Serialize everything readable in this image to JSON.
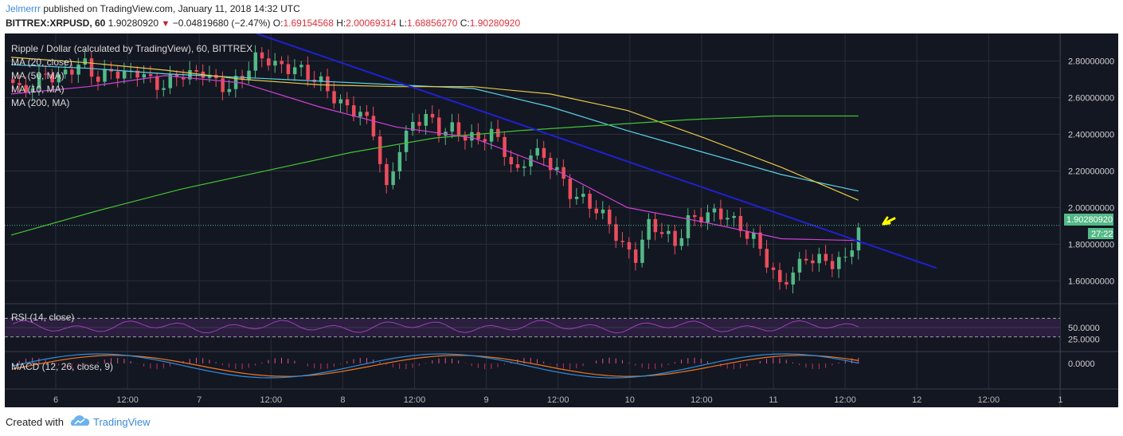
{
  "header": {
    "author": "Jelmerrr",
    "published": "published on TradingView.com, January 11, 2018 14:32 UTC",
    "symbol": "BITTREX:XRPUSD, 60",
    "price": "1.90280920",
    "change": "−0.04819680 (−2.47%)",
    "open_label": "O:",
    "open": "1.69154568",
    "high_label": "H:",
    "high": "2.00069314",
    "low_label": "L:",
    "low": "1.68856270",
    "close_label": "C:",
    "close": "1.90280920"
  },
  "legend": {
    "title": "Ripple / Dollar (calculated by TradingView), 60, BITTREX",
    "ma20": "MA (20, close)",
    "ma50": "MA (50, MA)",
    "ma10": "MA (10, MA)",
    "ma200": "MA (200, MA)",
    "rsi": "RSI (14, close)",
    "macd": "MACD (12, 26, close, 9)"
  },
  "last_price_label": "1.90280920",
  "countdown": "27:22",
  "colors": {
    "background": "#131722",
    "grid": "#2a2e39",
    "up": "#53b987",
    "down": "#eb4d5c",
    "ma20": "#5ad3e6",
    "ma50": "#e8c846",
    "ma10": "#d040d8",
    "ma200": "#44c232",
    "trendline": "#2020d0",
    "rsi": "#9b3fb5",
    "macd": "#2e8de0",
    "signal": "#f0741e",
    "arrow": "#ffff00"
  },
  "footer": {
    "created_with": "Created with",
    "brand": "TradingView",
    "logo_icon": "tradingview-cloud-icon"
  },
  "chart_data": {
    "type": "candlestick",
    "title": "Ripple / Dollar (calculated by TradingView), 60, BITTREX",
    "x_ticks": [
      "6",
      "12:00",
      "7",
      "12:00",
      "8",
      "12:00",
      "9",
      "12:00",
      "10",
      "12:00",
      "11",
      "12:00",
      "12",
      "12:00",
      "1"
    ],
    "price_axis": {
      "ticks": [
        "2.80000000",
        "2.60000000",
        "2.40000000",
        "2.20000000",
        "2.00000000",
        "1.80000000",
        "1.60000000"
      ],
      "range": [
        1.48,
        2.95
      ],
      "last": 1.9028092
    },
    "rsi_axis": {
      "ticks": [
        "50.0000",
        "25.0000"
      ],
      "overbought": 70,
      "oversold": 30
    },
    "macd_axis": {
      "ticks": [
        "0.0000"
      ]
    },
    "candle_close_path": [
      2.7,
      2.62,
      2.68,
      2.75,
      2.7,
      2.74,
      2.78,
      2.72,
      2.76,
      2.7,
      2.73,
      2.7,
      2.68,
      2.72,
      2.7,
      2.74,
      2.7,
      2.66,
      2.7,
      2.8,
      2.82,
      2.78,
      2.76,
      2.7,
      2.68,
      2.62,
      2.55,
      2.5,
      2.4,
      2.1,
      2.35,
      2.45,
      2.48,
      2.42,
      2.45,
      2.4,
      2.35,
      2.4,
      2.32,
      2.2,
      2.3,
      2.25,
      2.2,
      2.1,
      2.05,
      1.97,
      1.9,
      1.8,
      1.75,
      1.9,
      1.85,
      1.8,
      1.95,
      1.96,
      1.95,
      1.94,
      1.9,
      1.85,
      1.7,
      1.55,
      1.65,
      1.75,
      1.72,
      1.68,
      1.7,
      1.9028092
    ],
    "series": [
      {
        "name": "MA (20, close)",
        "values": [
          2.78,
          2.76,
          2.73,
          2.71,
          2.69,
          2.67,
          2.65,
          2.55,
          2.42,
          2.3,
          2.18,
          2.09
        ]
      },
      {
        "name": "MA (50, MA)",
        "values": [
          2.82,
          2.79,
          2.75,
          2.7,
          2.67,
          2.66,
          2.66,
          2.62,
          2.53,
          2.38,
          2.22,
          2.04
        ]
      },
      {
        "name": "MA (10, MA)",
        "values": [
          2.62,
          2.66,
          2.72,
          2.68,
          2.55,
          2.44,
          2.38,
          2.22,
          2.0,
          1.92,
          1.83,
          1.82
        ]
      },
      {
        "name": "MA (200, MA)",
        "values": [
          1.85,
          1.98,
          2.1,
          2.2,
          2.3,
          2.38,
          2.42,
          2.45,
          2.48,
          2.5,
          2.5
        ]
      }
    ],
    "trendline": {
      "from": 2.95,
      "to": 1.67
    }
  }
}
